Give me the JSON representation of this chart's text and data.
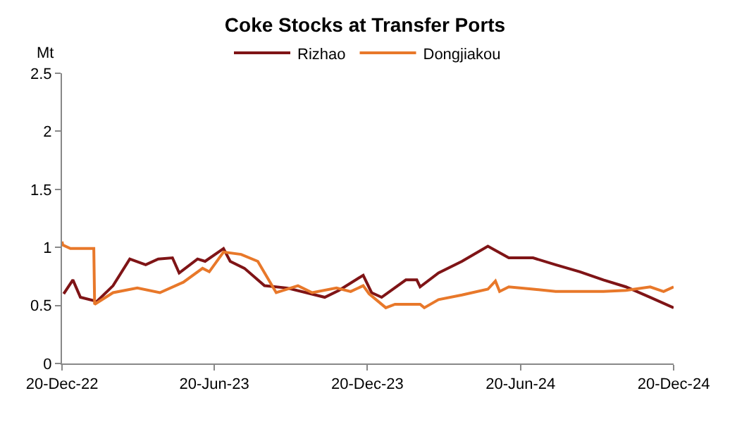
{
  "chart_data": {
    "type": "line",
    "title": "Coke Stocks at Transfer Ports",
    "ylabel": "Mt",
    "legend": "top",
    "grid": false,
    "marker": "none",
    "line_style": "solid",
    "xlim": [
      "2022-12-20",
      "2024-12-20"
    ],
    "xticks": [
      {
        "value": "2022-12-20",
        "label": "20-Dec-22"
      },
      {
        "value": "2023-06-20",
        "label": "20-Jun-23"
      },
      {
        "value": "2023-12-20",
        "label": "20-Dec-23"
      },
      {
        "value": "2024-06-20",
        "label": "20-Jun-24"
      },
      {
        "value": "2024-12-20",
        "label": "20-Dec-24"
      }
    ],
    "ylim": [
      0,
      2.5
    ],
    "yticks": [
      0,
      0.5,
      1,
      1.5,
      2,
      2.5
    ],
    "series": [
      {
        "name": "Rizhao",
        "color": "#7f1416",
        "x": [
          "2022-12-22",
          "2023-01-02",
          "2023-01-11",
          "2023-01-28",
          "2023-01-30",
          "2023-02-19",
          "2023-03-11",
          "2023-03-30",
          "2023-04-14",
          "2023-05-01",
          "2023-05-09",
          "2023-05-31",
          "2023-06-09",
          "2023-07-01",
          "2023-07-09",
          "2023-07-26",
          "2023-08-19",
          "2023-09-15",
          "2023-10-08",
          "2023-10-30",
          "2023-11-16",
          "2023-12-15",
          "2023-12-25",
          "2024-01-06",
          "2024-02-04",
          "2024-02-17",
          "2024-02-21",
          "2024-03-14",
          "2024-04-11",
          "2024-05-12",
          "2024-06-06",
          "2024-07-05",
          "2024-08-01",
          "2024-08-30",
          "2024-09-27",
          "2024-10-24",
          "2024-11-22",
          "2024-12-20"
        ],
        "values": [
          0.6,
          0.72,
          0.57,
          0.54,
          0.53,
          0.67,
          0.9,
          0.85,
          0.9,
          0.91,
          0.78,
          0.9,
          0.88,
          0.99,
          0.88,
          0.82,
          0.67,
          0.65,
          0.61,
          0.57,
          0.63,
          0.76,
          0.61,
          0.57,
          0.72,
          0.72,
          0.66,
          0.78,
          0.88,
          1.01,
          0.91,
          0.91,
          0.85,
          0.79,
          0.72,
          0.66,
          0.57,
          0.48
        ]
      },
      {
        "name": "Dongjiakou",
        "color": "#e8782a",
        "x": [
          "2022-12-20",
          "2022-12-21",
          "2022-12-30",
          "2023-01-21",
          "2023-01-27",
          "2023-01-28",
          "2023-02-19",
          "2023-03-20",
          "2023-04-16",
          "2023-05-14",
          "2023-06-06",
          "2023-06-14",
          "2023-07-01",
          "2023-07-22",
          "2023-08-11",
          "2023-09-02",
          "2023-09-28",
          "2023-10-15",
          "2023-11-13",
          "2023-11-30",
          "2023-12-15",
          "2023-12-22",
          "2024-01-11",
          "2024-01-22",
          "2024-02-21",
          "2024-02-26",
          "2024-03-14",
          "2024-04-11",
          "2024-05-12",
          "2024-05-21",
          "2024-05-26",
          "2024-06-06",
          "2024-07-05",
          "2024-08-01",
          "2024-08-30",
          "2024-09-27",
          "2024-10-24",
          "2024-11-22",
          "2024-12-08",
          "2024-12-20"
        ],
        "values": [
          1.05,
          1.02,
          0.99,
          0.99,
          0.99,
          0.51,
          0.61,
          0.65,
          0.61,
          0.7,
          0.82,
          0.79,
          0.96,
          0.94,
          0.88,
          0.61,
          0.67,
          0.61,
          0.65,
          0.62,
          0.67,
          0.6,
          0.48,
          0.51,
          0.51,
          0.48,
          0.55,
          0.59,
          0.64,
          0.71,
          0.62,
          0.66,
          0.64,
          0.62,
          0.62,
          0.62,
          0.63,
          0.66,
          0.62,
          0.66
        ]
      }
    ]
  }
}
